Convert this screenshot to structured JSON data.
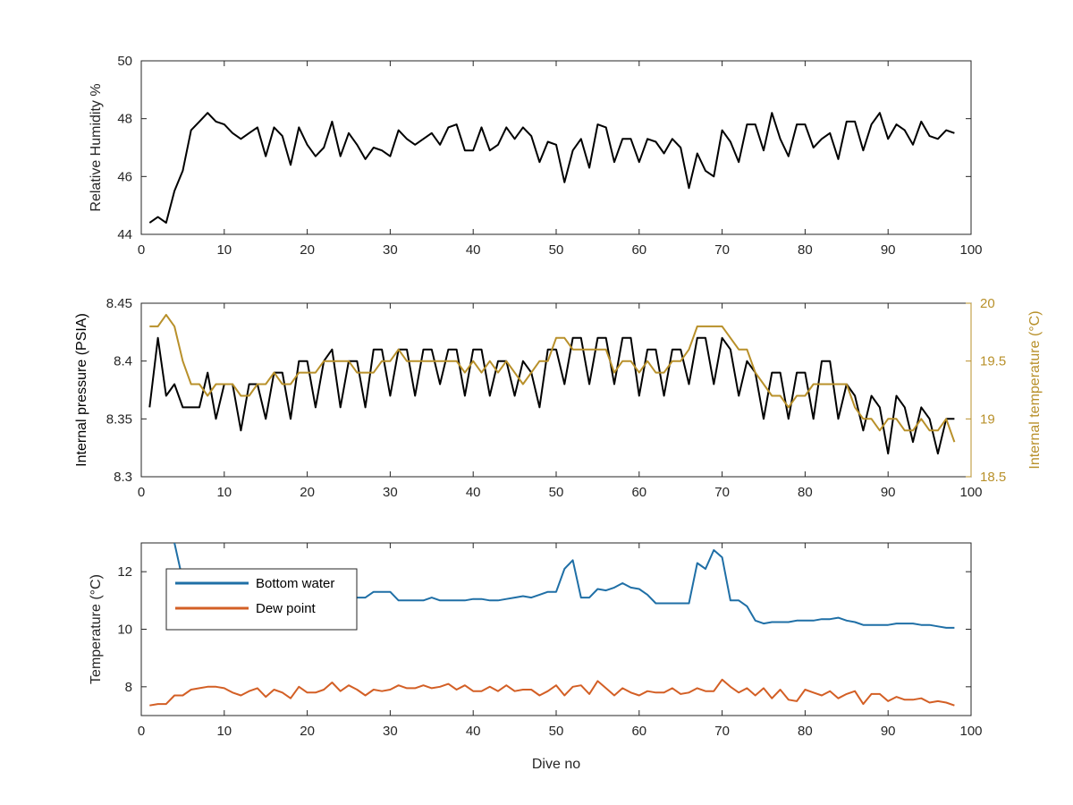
{
  "chart_data": [
    {
      "type": "line",
      "xlabel": "",
      "ylabel": "Relative Humidity %",
      "xlim": [
        0,
        100
      ],
      "ylim": [
        44,
        50
      ],
      "xticks": [
        0,
        10,
        20,
        30,
        40,
        50,
        60,
        70,
        80,
        90,
        100
      ],
      "yticks": [
        44,
        46,
        48,
        50
      ],
      "xtick_labels": [
        "0",
        "10",
        "20",
        "30",
        "40",
        "50",
        "60",
        "70",
        "80",
        "90",
        "100"
      ],
      "ytick_labels": [
        "44",
        "46",
        "48",
        "50"
      ],
      "grid": false,
      "series": [
        {
          "color": "#000000",
          "x": [
            1,
            2,
            3,
            4,
            5,
            6,
            7,
            8,
            9,
            10,
            11,
            12,
            13,
            14,
            15,
            16,
            17,
            18,
            19,
            20,
            21,
            22,
            23,
            24,
            25,
            26,
            27,
            28,
            29,
            30,
            31,
            32,
            33,
            34,
            35,
            36,
            37,
            38,
            39,
            40,
            41,
            42,
            43,
            44,
            45,
            46,
            47,
            48,
            49,
            50,
            51,
            52,
            53,
            54,
            55,
            56,
            57,
            58,
            59,
            60,
            61,
            62,
            63,
            64,
            65,
            66,
            67,
            68,
            69,
            70,
            71,
            72,
            73,
            74,
            75,
            76,
            77,
            78,
            79,
            80,
            81,
            82,
            83,
            84,
            85,
            86,
            87,
            88,
            89,
            90,
            91,
            92,
            93,
            94,
            95,
            96,
            97,
            98
          ],
          "values": [
            44.4,
            44.6,
            44.4,
            45.5,
            46.2,
            47.6,
            47.9,
            48.2,
            47.9,
            47.8,
            47.5,
            47.3,
            47.5,
            47.7,
            46.7,
            47.7,
            47.4,
            46.4,
            47.7,
            47.1,
            46.7,
            47.0,
            47.9,
            46.7,
            47.5,
            47.1,
            46.6,
            47.0,
            46.9,
            46.7,
            47.6,
            47.3,
            47.1,
            47.3,
            47.5,
            47.1,
            47.7,
            47.8,
            46.9,
            46.9,
            47.7,
            46.9,
            47.1,
            47.7,
            47.3,
            47.7,
            47.4,
            46.5,
            47.2,
            47.1,
            45.8,
            46.9,
            47.3,
            46.3,
            47.8,
            47.7,
            46.5,
            47.3,
            47.3,
            46.5,
            47.3,
            47.2,
            46.8,
            47.3,
            47.0,
            45.6,
            46.8,
            46.2,
            46.0,
            47.6,
            47.2,
            46.5,
            47.8,
            47.8,
            46.9,
            48.2,
            47.3,
            46.7,
            47.8,
            47.8,
            47.0,
            47.3,
            47.5,
            46.6,
            47.9,
            47.9,
            46.9,
            47.8,
            48.2,
            47.3,
            47.8,
            47.6,
            47.1,
            47.9,
            47.4,
            47.3,
            47.6,
            47.5
          ]
        }
      ]
    },
    {
      "type": "line",
      "xlabel": "",
      "ylabel": "Internal pressure (PSIA)",
      "ylabel_right": "Internal temperature (°C)",
      "xlim": [
        0,
        100
      ],
      "ylim": [
        8.3,
        8.45
      ],
      "ylim_right": [
        18.5,
        20
      ],
      "xticks": [
        0,
        10,
        20,
        30,
        40,
        50,
        60,
        70,
        80,
        90,
        100
      ],
      "yticks": [
        8.3,
        8.35,
        8.4,
        8.45
      ],
      "yticks_right": [
        18.5,
        19,
        19.5,
        20
      ],
      "xtick_labels": [
        "0",
        "10",
        "20",
        "30",
        "40",
        "50",
        "60",
        "70",
        "80",
        "90",
        "100"
      ],
      "ytick_labels": [
        "8.3",
        "8.35",
        "8.4",
        "8.45"
      ],
      "ytick_labels_right": [
        "18.5",
        "19",
        "19.5",
        "20"
      ],
      "grid": false,
      "series": [
        {
          "axis": "left",
          "color": "#000000",
          "x": [
            1,
            2,
            3,
            4,
            5,
            6,
            7,
            8,
            9,
            10,
            11,
            12,
            13,
            14,
            15,
            16,
            17,
            18,
            19,
            20,
            21,
            22,
            23,
            24,
            25,
            26,
            27,
            28,
            29,
            30,
            31,
            32,
            33,
            34,
            35,
            36,
            37,
            38,
            39,
            40,
            41,
            42,
            43,
            44,
            45,
            46,
            47,
            48,
            49,
            50,
            51,
            52,
            53,
            54,
            55,
            56,
            57,
            58,
            59,
            60,
            61,
            62,
            63,
            64,
            65,
            66,
            67,
            68,
            69,
            70,
            71,
            72,
            73,
            74,
            75,
            76,
            77,
            78,
            79,
            80,
            81,
            82,
            83,
            84,
            85,
            86,
            87,
            88,
            89,
            90,
            91,
            92,
            93,
            94,
            95,
            96,
            97,
            98
          ],
          "values": [
            8.36,
            8.42,
            8.37,
            8.38,
            8.36,
            8.36,
            8.36,
            8.39,
            8.35,
            8.38,
            8.38,
            8.34,
            8.38,
            8.38,
            8.35,
            8.39,
            8.39,
            8.35,
            8.4,
            8.4,
            8.36,
            8.4,
            8.41,
            8.36,
            8.4,
            8.4,
            8.36,
            8.41,
            8.41,
            8.37,
            8.41,
            8.41,
            8.37,
            8.41,
            8.41,
            8.38,
            8.41,
            8.41,
            8.37,
            8.41,
            8.41,
            8.37,
            8.4,
            8.4,
            8.37,
            8.4,
            8.39,
            8.36,
            8.41,
            8.41,
            8.38,
            8.42,
            8.42,
            8.38,
            8.42,
            8.42,
            8.38,
            8.42,
            8.42,
            8.37,
            8.41,
            8.41,
            8.37,
            8.41,
            8.41,
            8.38,
            8.42,
            8.42,
            8.38,
            8.42,
            8.41,
            8.37,
            8.4,
            8.39,
            8.35,
            8.39,
            8.39,
            8.35,
            8.39,
            8.39,
            8.35,
            8.4,
            8.4,
            8.35,
            8.38,
            8.37,
            8.34,
            8.37,
            8.36,
            8.32,
            8.37,
            8.36,
            8.33,
            8.36,
            8.35,
            8.32,
            8.35,
            8.35
          ]
        },
        {
          "axis": "right",
          "color": "#b8902a",
          "x": [
            1,
            2,
            3,
            4,
            5,
            6,
            7,
            8,
            9,
            10,
            11,
            12,
            13,
            14,
            15,
            16,
            17,
            18,
            19,
            20,
            21,
            22,
            23,
            24,
            25,
            26,
            27,
            28,
            29,
            30,
            31,
            32,
            33,
            34,
            35,
            36,
            37,
            38,
            39,
            40,
            41,
            42,
            43,
            44,
            45,
            46,
            47,
            48,
            49,
            50,
            51,
            52,
            53,
            54,
            55,
            56,
            57,
            58,
            59,
            60,
            61,
            62,
            63,
            64,
            65,
            66,
            67,
            68,
            69,
            70,
            71,
            72,
            73,
            74,
            75,
            76,
            77,
            78,
            79,
            80,
            81,
            82,
            83,
            84,
            85,
            86,
            87,
            88,
            89,
            90,
            91,
            92,
            93,
            94,
            95,
            96,
            97,
            98
          ],
          "values": [
            19.8,
            19.8,
            19.9,
            19.8,
            19.5,
            19.3,
            19.3,
            19.2,
            19.3,
            19.3,
            19.3,
            19.2,
            19.2,
            19.3,
            19.3,
            19.4,
            19.3,
            19.3,
            19.4,
            19.4,
            19.4,
            19.5,
            19.5,
            19.5,
            19.5,
            19.4,
            19.4,
            19.4,
            19.5,
            19.5,
            19.6,
            19.5,
            19.5,
            19.5,
            19.5,
            19.5,
            19.5,
            19.5,
            19.4,
            19.5,
            19.4,
            19.5,
            19.4,
            19.5,
            19.4,
            19.3,
            19.4,
            19.5,
            19.5,
            19.7,
            19.7,
            19.6,
            19.6,
            19.6,
            19.6,
            19.6,
            19.4,
            19.5,
            19.5,
            19.4,
            19.5,
            19.4,
            19.4,
            19.5,
            19.5,
            19.6,
            19.8,
            19.8,
            19.8,
            19.8,
            19.7,
            19.6,
            19.6,
            19.4,
            19.3,
            19.2,
            19.2,
            19.1,
            19.2,
            19.2,
            19.3,
            19.3,
            19.3,
            19.3,
            19.3,
            19.1,
            19.0,
            19.0,
            18.9,
            19.0,
            19.0,
            18.9,
            18.9,
            19.0,
            18.9,
            18.9,
            19.0,
            18.8
          ]
        }
      ]
    },
    {
      "type": "line",
      "xlabel": "Dive no",
      "ylabel": "Temperature (°C)",
      "xlim": [
        0,
        100
      ],
      "ylim": [
        7,
        13
      ],
      "xticks": [
        0,
        10,
        20,
        30,
        40,
        50,
        60,
        70,
        80,
        90,
        100
      ],
      "yticks": [
        8,
        10,
        12
      ],
      "xtick_labels": [
        "0",
        "10",
        "20",
        "30",
        "40",
        "50",
        "60",
        "70",
        "80",
        "90",
        "100"
      ],
      "ytick_labels": [
        "8",
        "10",
        "12"
      ],
      "grid": false,
      "legend": "top-left",
      "series": [
        {
          "name": "Bottom water",
          "color": "#1f6fa6",
          "x": [
            4,
            5,
            6,
            7,
            8,
            9,
            10,
            11,
            12,
            13,
            14,
            15,
            16,
            17,
            18,
            19,
            20,
            21,
            22,
            23,
            24,
            25,
            26,
            27,
            28,
            29,
            30,
            31,
            32,
            33,
            34,
            35,
            36,
            37,
            38,
            39,
            40,
            41,
            42,
            43,
            44,
            45,
            46,
            47,
            48,
            49,
            50,
            51,
            52,
            53,
            54,
            55,
            56,
            57,
            58,
            59,
            60,
            61,
            62,
            63,
            64,
            65,
            66,
            67,
            68,
            69,
            70,
            71,
            72,
            73,
            74,
            75,
            76,
            77,
            78,
            79,
            80,
            81,
            82,
            83,
            84,
            85,
            86,
            87,
            88,
            89,
            90,
            91,
            92,
            93,
            94,
            95,
            96,
            97,
            98
          ],
          "values": [
            13.0,
            11.7,
            11.4,
            11.3,
            11.2,
            11.2,
            11.2,
            11.2,
            11.2,
            11.2,
            11.2,
            11.2,
            11.2,
            11.2,
            11.2,
            11.2,
            11.2,
            11.2,
            11.2,
            11.2,
            11.2,
            11.2,
            11.1,
            11.1,
            11.3,
            11.3,
            11.3,
            11.0,
            11.0,
            11.0,
            11.0,
            11.1,
            11.0,
            11.0,
            11.0,
            11.0,
            11.05,
            11.05,
            11.0,
            11.0,
            11.05,
            11.1,
            11.15,
            11.1,
            11.2,
            11.3,
            11.3,
            12.1,
            12.4,
            11.1,
            11.1,
            11.4,
            11.35,
            11.45,
            11.6,
            11.45,
            11.4,
            11.2,
            10.9,
            10.9,
            10.9,
            10.9,
            10.9,
            12.3,
            12.1,
            12.75,
            12.5,
            11.0,
            11.0,
            10.8,
            10.3,
            10.2,
            10.25,
            10.25,
            10.25,
            10.3,
            10.3,
            10.3,
            10.35,
            10.35,
            10.4,
            10.3,
            10.25,
            10.15,
            10.15,
            10.15,
            10.15,
            10.2,
            10.2,
            10.2,
            10.15,
            10.15,
            10.1,
            10.05,
            10.05
          ]
        },
        {
          "name": "Dew point",
          "color": "#d35f25",
          "x": [
            1,
            2,
            3,
            4,
            5,
            6,
            7,
            8,
            9,
            10,
            11,
            12,
            13,
            14,
            15,
            16,
            17,
            18,
            19,
            20,
            21,
            22,
            23,
            24,
            25,
            26,
            27,
            28,
            29,
            30,
            31,
            32,
            33,
            34,
            35,
            36,
            37,
            38,
            39,
            40,
            41,
            42,
            43,
            44,
            45,
            46,
            47,
            48,
            49,
            50,
            51,
            52,
            53,
            54,
            55,
            56,
            57,
            58,
            59,
            60,
            61,
            62,
            63,
            64,
            65,
            66,
            67,
            68,
            69,
            70,
            71,
            72,
            73,
            74,
            75,
            76,
            77,
            78,
            79,
            80,
            81,
            82,
            83,
            84,
            85,
            86,
            87,
            88,
            89,
            90,
            91,
            92,
            93,
            94,
            95,
            96,
            97,
            98
          ],
          "values": [
            7.35,
            7.4,
            7.4,
            7.7,
            7.7,
            7.9,
            7.95,
            8.0,
            8.0,
            7.95,
            7.8,
            7.7,
            7.85,
            7.95,
            7.65,
            7.9,
            7.8,
            7.6,
            8.0,
            7.8,
            7.8,
            7.9,
            8.15,
            7.85,
            8.05,
            7.9,
            7.7,
            7.9,
            7.85,
            7.9,
            8.05,
            7.95,
            7.95,
            8.05,
            7.95,
            8.0,
            8.1,
            7.9,
            8.05,
            7.85,
            7.85,
            8.0,
            7.85,
            8.05,
            7.85,
            7.9,
            7.9,
            7.7,
            7.85,
            8.05,
            7.7,
            8.0,
            8.05,
            7.75,
            8.2,
            7.95,
            7.7,
            7.95,
            7.8,
            7.7,
            7.85,
            7.8,
            7.8,
            7.95,
            7.75,
            7.8,
            7.95,
            7.85,
            7.85,
            8.25,
            8.0,
            7.8,
            7.95,
            7.7,
            7.95,
            7.6,
            7.9,
            7.55,
            7.5,
            7.9,
            7.8,
            7.7,
            7.85,
            7.6,
            7.75,
            7.85,
            7.4,
            7.75,
            7.75,
            7.5,
            7.65,
            7.55,
            7.55,
            7.6,
            7.45,
            7.5,
            7.45,
            7.35
          ]
        }
      ]
    }
  ]
}
